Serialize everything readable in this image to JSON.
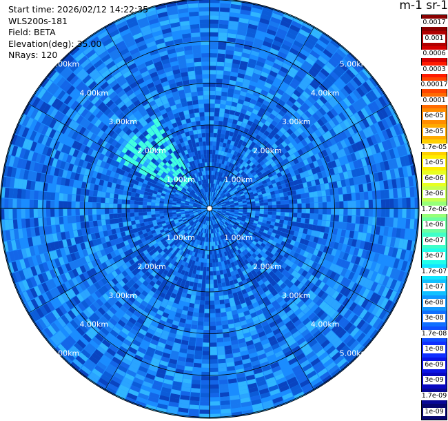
{
  "info": {
    "start_time": "Start time: 2026/02/12 14:22:35",
    "instrument": "WLS200s-181",
    "field": "Field: BETA",
    "elevation": "Elevation(deg): 35.00",
    "nrays": "NRays: 120"
  },
  "colorbar": {
    "title": "m-1 sr-1",
    "labels": [
      "0.0017",
      "0.001",
      "0.0006",
      "0.0003",
      "0.00017",
      "0.0001",
      "6e-05",
      "3e-05",
      "1.7e-05",
      "1e-05",
      "6e-06",
      "3e-06",
      "1.7e-06",
      "1e-06",
      "6e-07",
      "3e-07",
      "1.7e-07",
      "1e-07",
      "6e-08",
      "3e-08",
      "1.7e-08",
      "1e-08",
      "6e-09",
      "3e-09",
      "1.7e-09",
      "1e-09"
    ],
    "colors": [
      "#8a0000",
      "#b00000",
      "#d60000",
      "#ff1a00",
      "#ff4400",
      "#ff6a00",
      "#ff8c00",
      "#ffaa00",
      "#ffd000",
      "#ffee00",
      "#e8ff20",
      "#c6ff50",
      "#96ff78",
      "#6cffa0",
      "#40ffc8",
      "#20ffea",
      "#10e6ff",
      "#10c0ff",
      "#1097ff",
      "#1070ff",
      "#1050ff",
      "#1030ff",
      "#0a14e6",
      "#0808c0",
      "#080896",
      "#06066e"
    ]
  },
  "range_rings": {
    "labels": [
      "1.00km",
      "2.00km",
      "3.00km",
      "4.00km",
      "5.00km"
    ]
  },
  "plot_colors": {
    "dominant": [
      "#1a8cff",
      "#1878f0",
      "#2aa4ff",
      "#0c5cd8",
      "#1466e8",
      "#30b6ff",
      "#0a44c0"
    ],
    "plume": "#40ffe0",
    "grid": "#000000"
  }
}
